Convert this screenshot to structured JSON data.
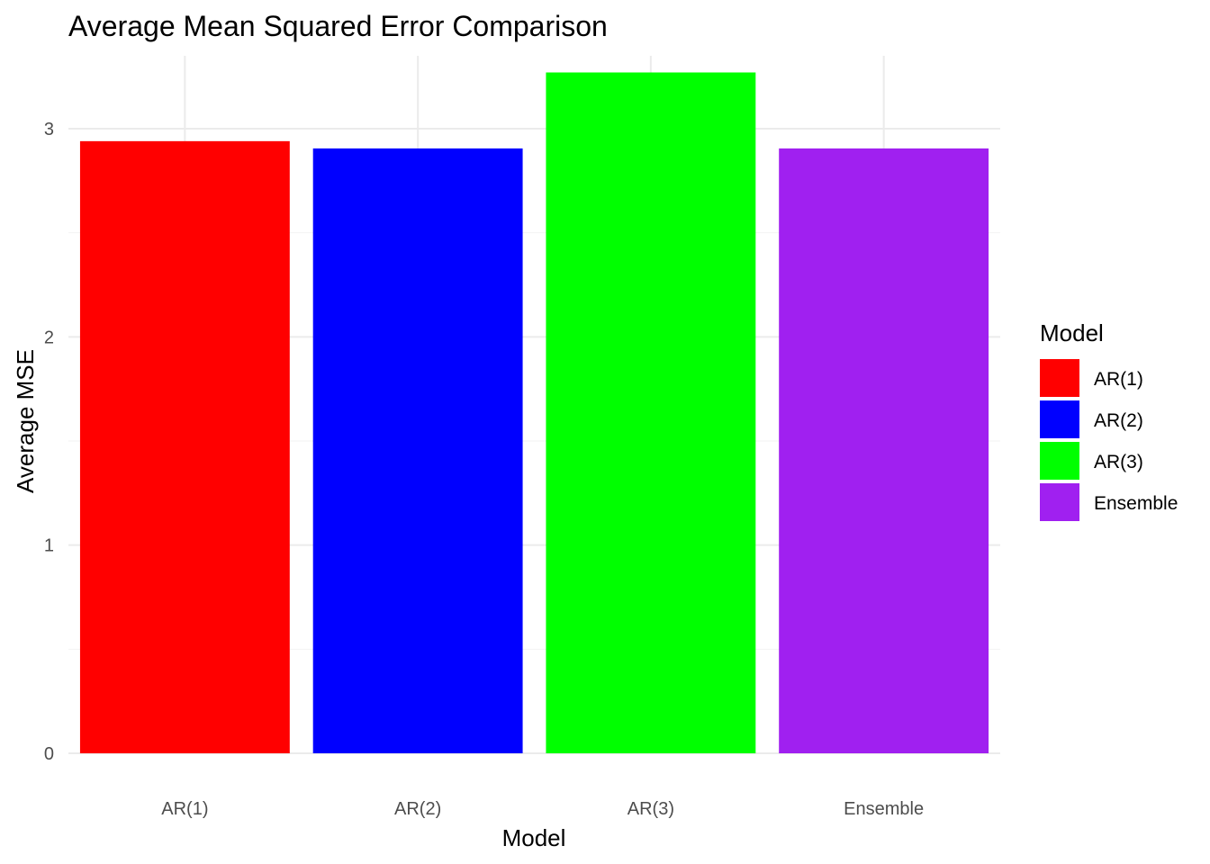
{
  "chart_data": {
    "type": "bar",
    "title": "Average Mean Squared Error Comparison",
    "xlabel": "Model",
    "ylabel": "Average MSE",
    "categories": [
      "AR(1)",
      "AR(2)",
      "AR(3)",
      "Ensemble"
    ],
    "values": [
      2.94,
      2.905,
      3.27,
      2.905
    ],
    "colors": [
      "#FF0000",
      "#0000FF",
      "#00FF00",
      "#A020F0"
    ],
    "ylim": [
      0,
      3.35
    ],
    "yticks": [
      "0",
      "1",
      "2",
      "3"
    ],
    "grid": true,
    "legend": {
      "title": "Model",
      "position": "right",
      "entries": [
        "AR(1)",
        "AR(2)",
        "AR(3)",
        "Ensemble"
      ]
    }
  }
}
